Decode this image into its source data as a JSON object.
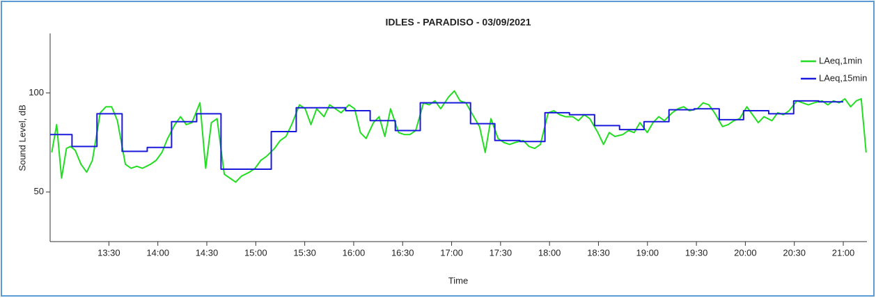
{
  "chart_data": {
    "type": "line",
    "title": "IDLES - PARADISO - 03/09/2021",
    "xlabel": "Time",
    "ylabel": "Sound Level, dB",
    "xlim": [
      774,
      1274.5
    ],
    "ylim": [
      25,
      130
    ],
    "xticks": [
      {
        "value": 810,
        "label": "13:30"
      },
      {
        "value": 840,
        "label": "14:00"
      },
      {
        "value": 870,
        "label": "14:30"
      },
      {
        "value": 900,
        "label": "15:00"
      },
      {
        "value": 930,
        "label": "15:30"
      },
      {
        "value": 960,
        "label": "16:00"
      },
      {
        "value": 990,
        "label": "16:30"
      },
      {
        "value": 1020,
        "label": "17:00"
      },
      {
        "value": 1050,
        "label": "17:30"
      },
      {
        "value": 1080,
        "label": "18:00"
      },
      {
        "value": 1110,
        "label": "18:30"
      },
      {
        "value": 1140,
        "label": "19:00"
      },
      {
        "value": 1170,
        "label": "19:30"
      },
      {
        "value": 1200,
        "label": "20:00"
      },
      {
        "value": 1230,
        "label": "20:30"
      },
      {
        "value": 1260,
        "label": "21:00"
      }
    ],
    "yticks": [
      50,
      100
    ],
    "legend": "upper right",
    "series": [
      {
        "name": "LAeq,1min",
        "color": "#22dd22",
        "step": false,
        "x": [
          775,
          778,
          781,
          784,
          786.5,
          789.4,
          792.9,
          796.4,
          799.9,
          804.7,
          808.2,
          811.7,
          815.2,
          820.1,
          823.6,
          827.1,
          830.6,
          835.5,
          839,
          842.5,
          846,
          850.4,
          853.9,
          857.4,
          860.9,
          865.8,
          869.3,
          872.8,
          876.3,
          880.7,
          884.2,
          887.7,
          891.2,
          896.1,
          899.6,
          903.1,
          906.6,
          911.5,
          915,
          918.5,
          922,
          926.8,
          930.3,
          933.8,
          937.3,
          941.8,
          945.3,
          948.8,
          952.3,
          957.1,
          960.6,
          964.1,
          967.6,
          972.1,
          975.6,
          979.1,
          982.6,
          987.5,
          991,
          994.5,
          998,
          1002.8,
          1006.3,
          1009.8,
          1013.3,
          1018.2,
          1021.7,
          1025.2,
          1028.7,
          1033.6,
          1037.1,
          1040.6,
          1044.1,
          1048.5,
          1052,
          1055.5,
          1059,
          1063.9,
          1067.4,
          1070.9,
          1074.4,
          1079.2,
          1082.7,
          1086.2,
          1089.7,
          1094.2,
          1097.7,
          1101.2,
          1104.7,
          1109.6,
          1113.1,
          1116.6,
          1120.1,
          1124.9,
          1128.4,
          1131.9,
          1135.4,
          1139.9,
          1143.4,
          1146.9,
          1150.4,
          1155.2,
          1158.7,
          1162.2,
          1165.7,
          1170.6,
          1174.1,
          1177.6,
          1181.1,
          1186,
          1189.5,
          1193,
          1196.5,
          1200.9,
          1204.4,
          1207.9,
          1211.4,
          1216.3,
          1219.8,
          1223.3,
          1226.8,
          1231.6,
          1235.1,
          1238.6,
          1242.1,
          1247,
          1250.5,
          1254,
          1257.5,
          1261,
          1264.5,
          1268,
          1271,
          1274
        ],
        "values": [
          70,
          84,
          57,
          72,
          73,
          71,
          64,
          60,
          66,
          90,
          93,
          93,
          86,
          64,
          62,
          63,
          62,
          64,
          66,
          70,
          77,
          84,
          88,
          84,
          85,
          95,
          62,
          85,
          87,
          59,
          57,
          55,
          58,
          60,
          62,
          66,
          68,
          72,
          76,
          78,
          84,
          94,
          92,
          84,
          92,
          88,
          94,
          92,
          90,
          94,
          92,
          80,
          77,
          85,
          88,
          78,
          92,
          80,
          79,
          79,
          81,
          95,
          94,
          96,
          92,
          98,
          101,
          96,
          95,
          88,
          83,
          70,
          87,
          77,
          75,
          74,
          75,
          76,
          73,
          72,
          74,
          90,
          91,
          89,
          88,
          88,
          86,
          89,
          87,
          80,
          74,
          80,
          78,
          79,
          81,
          80,
          85,
          80,
          85,
          88,
          86,
          90,
          92,
          93,
          91,
          92,
          95,
          94,
          90,
          83,
          84,
          86,
          87,
          93,
          89,
          85,
          88,
          86,
          90,
          89,
          91,
          96,
          95,
          94,
          95,
          96,
          94,
          96,
          95,
          97,
          93,
          96,
          97,
          70
        ]
      },
      {
        "name": "LAeq,15min",
        "color": "#1a1adc",
        "step": true,
        "x": [
          774,
          787.4,
          802.7,
          818.1,
          833.5,
          848.4,
          863.8,
          878.7,
          894.1,
          909.5,
          924.8,
          939.8,
          955.1,
          970.1,
          985.5,
          1000.8,
          1016.2,
          1031.6,
          1046.5,
          1061.9,
          1077.2,
          1092.2,
          1107.6,
          1122.9,
          1137.9,
          1153.2,
          1168.6,
          1184,
          1198.9,
          1214.3,
          1229.6,
          1245,
          1260
        ],
        "values": [
          79,
          73,
          89.5,
          70.5,
          72.5,
          85.5,
          89.5,
          61.5,
          61.5,
          80.5,
          92.5,
          92.5,
          91,
          86,
          81,
          95,
          95,
          84.5,
          76,
          75.5,
          90,
          89,
          83.5,
          81.5,
          85.5,
          91.5,
          92,
          86.5,
          91,
          89.5,
          96,
          95.5,
          95.5
        ]
      }
    ]
  }
}
